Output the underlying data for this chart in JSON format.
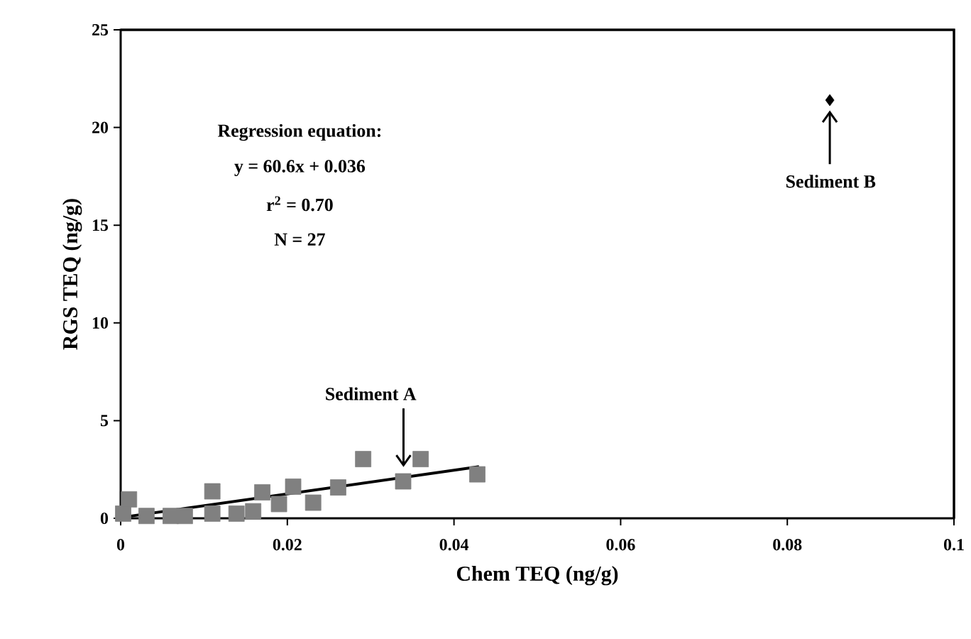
{
  "chart_data": {
    "type": "scatter",
    "xlabel": "Chem TEQ (ng/g)",
    "ylabel": "RGS TEQ (ng/g)",
    "xlim": [
      0,
      0.1
    ],
    "ylim": [
      0,
      25
    ],
    "xticks": [
      0,
      0.02,
      0.04,
      0.06,
      0.08,
      0.1
    ],
    "yticks": [
      0,
      5,
      10,
      15,
      20,
      25
    ],
    "series": [
      {
        "marker": "square",
        "color": "#808080",
        "x": [
          0.0003,
          0.001,
          0.0031,
          0.006,
          0.0077,
          0.011,
          0.011,
          0.0139,
          0.0159,
          0.017,
          0.019,
          0.0207,
          0.0231,
          0.0261,
          0.0291,
          0.0339,
          0.036,
          0.0428
        ],
        "values": [
          0.24,
          0.97,
          0.12,
          0.12,
          0.12,
          1.38,
          0.24,
          0.24,
          0.36,
          1.33,
          0.73,
          1.62,
          0.8,
          1.58,
          3.03,
          1.89,
          3.03,
          2.25
        ]
      },
      {
        "marker": "diamond",
        "color": "#000000",
        "x": [
          0.0851
        ],
        "values": [
          21.4
        ]
      },
      {
        "type": "line",
        "marker": "none",
        "line_style": "solid",
        "color": "#000000",
        "x": [
          0,
          0.043
        ],
        "values": [
          0.04,
          2.64
        ]
      }
    ],
    "annotations": [
      "Regression equation:",
      "y = 60.6x + 0.036",
      "r$^{2}$ = 0.70",
      "N = 27",
      "Sediment A",
      "Sediment B"
    ]
  }
}
